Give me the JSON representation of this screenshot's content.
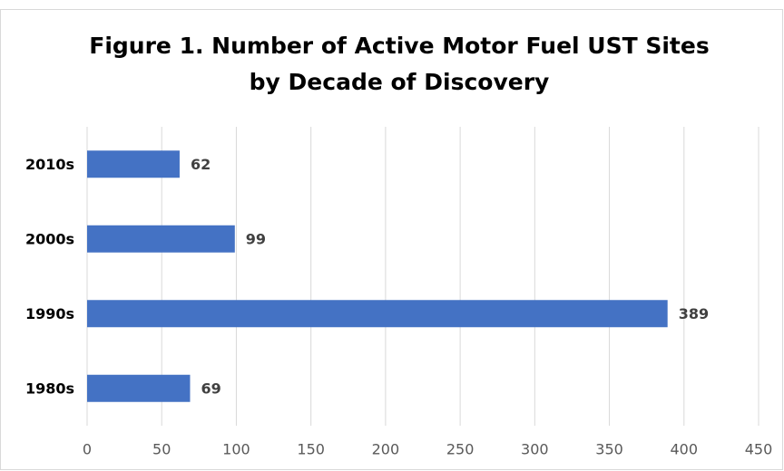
{
  "chart_data": {
    "type": "barh",
    "title": [
      "Figure 1. Number of Active Motor Fuel UST Sites",
      "by Decade of Discovery"
    ],
    "categories": [
      "1980s",
      "1990s",
      "2000s",
      "2010s"
    ],
    "values": [
      69,
      389,
      99,
      62
    ],
    "color": "#4472c4",
    "xlim": [
      0,
      450
    ],
    "xticks": [
      0,
      50,
      100,
      150,
      200,
      250,
      300,
      350,
      400,
      450
    ],
    "grid": true,
    "data_labels": true
  }
}
